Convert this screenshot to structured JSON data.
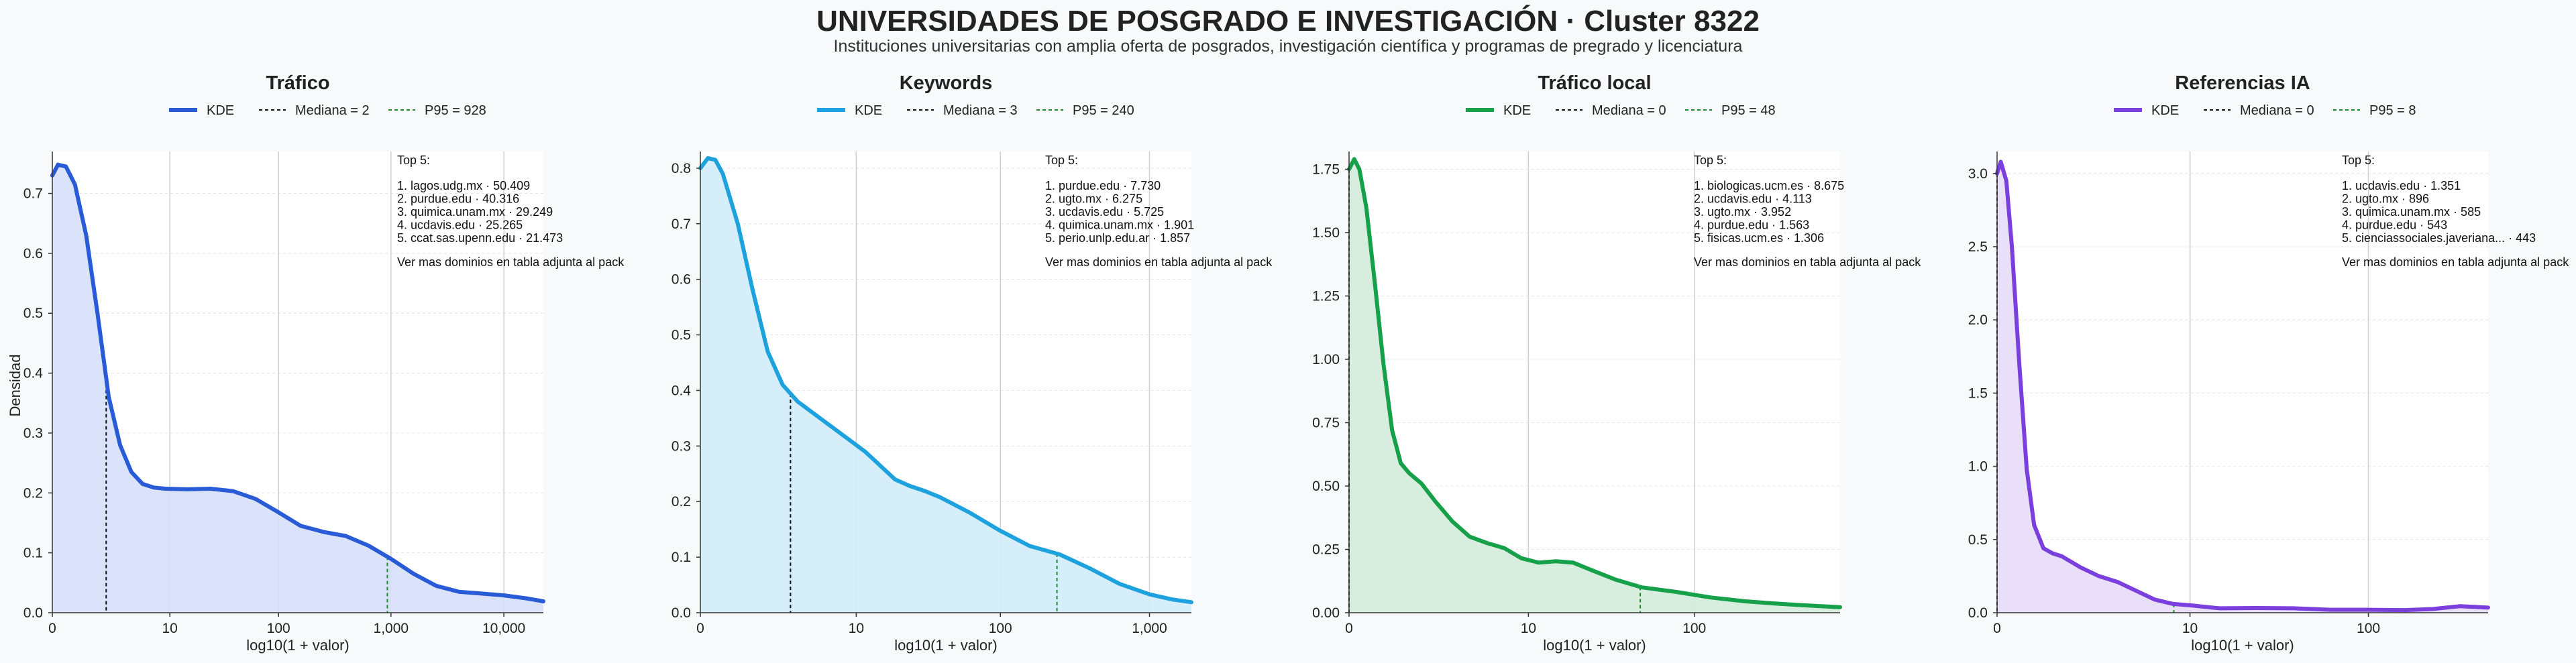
{
  "header": {
    "title": "UNIVERSIDADES DE POSGRADO E INVESTIGACIÓN · Cluster 8322",
    "subtitle": "Instituciones universitarias con amplia oferta de posgrados, investigación científica y programas de pregrado y licenciatura"
  },
  "chart_data": [
    {
      "type": "area",
      "title": "Tráfico",
      "color": "#2a5bd7",
      "fill": "#d6e0f8",
      "xlabel": "log10(1 + valor)",
      "ylabel": "Densidad",
      "xlim": [
        0,
        4.35
      ],
      "ylim": [
        0,
        0.77
      ],
      "xticks": [
        {
          "v": 0,
          "label": "0"
        },
        {
          "v": 1.041,
          "label": "10"
        },
        {
          "v": 2.004,
          "label": "100"
        },
        {
          "v": 3.0,
          "label": "1,000"
        },
        {
          "v": 4.0,
          "label": "10,000"
        }
      ],
      "yticks": [
        {
          "v": 0,
          "label": "0.0"
        },
        {
          "v": 0.1,
          "label": "0.1"
        },
        {
          "v": 0.2,
          "label": "0.2"
        },
        {
          "v": 0.3,
          "label": "0.3"
        },
        {
          "v": 0.4,
          "label": "0.4"
        },
        {
          "v": 0.5,
          "label": "0.5"
        },
        {
          "v": 0.6,
          "label": "0.6"
        },
        {
          "v": 0.7,
          "label": "0.7"
        }
      ],
      "legend": {
        "kde": "KDE",
        "median": "Mediana = 2",
        "p95": "P95 = 928"
      },
      "median_x": 0.477,
      "p95_x": 2.968,
      "kde": [
        [
          0,
          0.73
        ],
        [
          0.05,
          0.748
        ],
        [
          0.12,
          0.745
        ],
        [
          0.2,
          0.715
        ],
        [
          0.3,
          0.63
        ],
        [
          0.4,
          0.5
        ],
        [
          0.5,
          0.36
        ],
        [
          0.6,
          0.28
        ],
        [
          0.7,
          0.235
        ],
        [
          0.8,
          0.215
        ],
        [
          0.9,
          0.209
        ],
        [
          1.0,
          0.207
        ],
        [
          1.2,
          0.206
        ],
        [
          1.4,
          0.207
        ],
        [
          1.6,
          0.203
        ],
        [
          1.8,
          0.19
        ],
        [
          2.0,
          0.168
        ],
        [
          2.2,
          0.145
        ],
        [
          2.4,
          0.135
        ],
        [
          2.6,
          0.128
        ],
        [
          2.8,
          0.112
        ],
        [
          3.0,
          0.09
        ],
        [
          3.2,
          0.065
        ],
        [
          3.4,
          0.045
        ],
        [
          3.6,
          0.035
        ],
        [
          3.8,
          0.032
        ],
        [
          4.0,
          0.029
        ],
        [
          4.2,
          0.024
        ],
        [
          4.35,
          0.019
        ]
      ],
      "top5": {
        "heading": "Top 5:",
        "items": [
          "1. lagos.udg.mx · 50.409",
          "2. purdue.edu · 40.316",
          "3. quimica.unam.mx · 29.249",
          "4. ucdavis.edu · 25.265",
          "5. ccat.sas.upenn.edu · 21.473"
        ],
        "note": "Ver mas dominios en tabla adjunta al pack"
      }
    },
    {
      "type": "area",
      "title": "Keywords",
      "color": "#1ea2de",
      "fill": "#d2ecfa",
      "xlabel": "log10(1 + valor)",
      "ylabel": "",
      "xlim": [
        0,
        3.28
      ],
      "ylim": [
        0,
        0.83
      ],
      "xticks": [
        {
          "v": 0,
          "label": "0"
        },
        {
          "v": 1.041,
          "label": "10"
        },
        {
          "v": 2.004,
          "label": "100"
        },
        {
          "v": 3.0,
          "label": "1,000"
        }
      ],
      "yticks": [
        {
          "v": 0,
          "label": "0.0"
        },
        {
          "v": 0.1,
          "label": "0.1"
        },
        {
          "v": 0.2,
          "label": "0.2"
        },
        {
          "v": 0.3,
          "label": "0.3"
        },
        {
          "v": 0.4,
          "label": "0.4"
        },
        {
          "v": 0.5,
          "label": "0.5"
        },
        {
          "v": 0.6,
          "label": "0.6"
        },
        {
          "v": 0.7,
          "label": "0.7"
        },
        {
          "v": 0.8,
          "label": "0.8"
        }
      ],
      "legend": {
        "kde": "KDE",
        "median": "Mediana = 3",
        "p95": "P95 = 240"
      },
      "median_x": 0.602,
      "p95_x": 2.382,
      "kde": [
        [
          0,
          0.8
        ],
        [
          0.05,
          0.818
        ],
        [
          0.1,
          0.815
        ],
        [
          0.15,
          0.79
        ],
        [
          0.25,
          0.7
        ],
        [
          0.35,
          0.58
        ],
        [
          0.45,
          0.47
        ],
        [
          0.55,
          0.41
        ],
        [
          0.65,
          0.38
        ],
        [
          0.8,
          0.35
        ],
        [
          1.0,
          0.31
        ],
        [
          1.1,
          0.29
        ],
        [
          1.2,
          0.265
        ],
        [
          1.3,
          0.24
        ],
        [
          1.4,
          0.228
        ],
        [
          1.5,
          0.219
        ],
        [
          1.6,
          0.208
        ],
        [
          1.8,
          0.18
        ],
        [
          2.0,
          0.148
        ],
        [
          2.2,
          0.12
        ],
        [
          2.4,
          0.105
        ],
        [
          2.6,
          0.08
        ],
        [
          2.8,
          0.052
        ],
        [
          3.0,
          0.033
        ],
        [
          3.15,
          0.024
        ],
        [
          3.28,
          0.019
        ]
      ],
      "top5": {
        "heading": "Top 5:",
        "items": [
          "1. purdue.edu · 7.730",
          "2. ugto.mx · 6.275",
          "3. ucdavis.edu · 5.725",
          "4. quimica.unam.mx · 1.901",
          "5. perio.unlp.edu.ar · 1.857"
        ],
        "note": "Ver mas dominios en tabla adjunta al pack"
      }
    },
    {
      "type": "area",
      "title": "Tráfico local",
      "color": "#16a04a",
      "fill": "#d3ecdc",
      "xlabel": "log10(1 + valor)",
      "ylabel": "",
      "xlim": [
        0,
        2.85
      ],
      "ylim": [
        0,
        1.82
      ],
      "xticks": [
        {
          "v": 0,
          "label": "0"
        },
        {
          "v": 1.041,
          "label": "10"
        },
        {
          "v": 2.004,
          "label": "100"
        }
      ],
      "yticks": [
        {
          "v": 0,
          "label": "0.00"
        },
        {
          "v": 0.25,
          "label": "0.25"
        },
        {
          "v": 0.5,
          "label": "0.50"
        },
        {
          "v": 0.75,
          "label": "0.75"
        },
        {
          "v": 1.0,
          "label": "1.00"
        },
        {
          "v": 1.25,
          "label": "1.25"
        },
        {
          "v": 1.5,
          "label": "1.50"
        },
        {
          "v": 1.75,
          "label": "1.75"
        }
      ],
      "legend": {
        "kde": "KDE",
        "median": "Mediana = 0",
        "p95": "P95 = 48"
      },
      "median_x": 0,
      "p95_x": 1.69,
      "kde": [
        [
          0,
          1.75
        ],
        [
          0.03,
          1.79
        ],
        [
          0.06,
          1.75
        ],
        [
          0.1,
          1.6
        ],
        [
          0.15,
          1.3
        ],
        [
          0.2,
          0.98
        ],
        [
          0.25,
          0.72
        ],
        [
          0.3,
          0.59
        ],
        [
          0.35,
          0.55
        ],
        [
          0.42,
          0.51
        ],
        [
          0.5,
          0.44
        ],
        [
          0.6,
          0.36
        ],
        [
          0.7,
          0.3
        ],
        [
          0.8,
          0.275
        ],
        [
          0.9,
          0.255
        ],
        [
          1.0,
          0.215
        ],
        [
          1.1,
          0.198
        ],
        [
          1.2,
          0.203
        ],
        [
          1.3,
          0.198
        ],
        [
          1.4,
          0.17
        ],
        [
          1.55,
          0.13
        ],
        [
          1.7,
          0.1
        ],
        [
          1.9,
          0.082
        ],
        [
          2.1,
          0.06
        ],
        [
          2.3,
          0.045
        ],
        [
          2.5,
          0.035
        ],
        [
          2.7,
          0.027
        ],
        [
          2.85,
          0.022
        ]
      ],
      "top5": {
        "heading": "Top 5:",
        "items": [
          "1. biologicas.ucm.es · 8.675",
          "2. ucdavis.edu · 4.113",
          "3. ugto.mx · 3.952",
          "4. purdue.edu · 1.563",
          "5. fisicas.ucm.es · 1.306"
        ],
        "note": "Ver mas dominios en tabla adjunta al pack"
      }
    },
    {
      "type": "area",
      "title": "Referencias IA",
      "color": "#7a3fdc",
      "fill": "#e7dcf8",
      "xlabel": "log10(1 + valor)",
      "ylabel": "",
      "xlim": [
        0,
        2.65
      ],
      "ylim": [
        0,
        3.15
      ],
      "xticks": [
        {
          "v": 0,
          "label": "0"
        },
        {
          "v": 1.041,
          "label": "10"
        },
        {
          "v": 2.004,
          "label": "100"
        }
      ],
      "yticks": [
        {
          "v": 0,
          "label": "0.0"
        },
        {
          "v": 0.5,
          "label": "0.5"
        },
        {
          "v": 1.0,
          "label": "1.0"
        },
        {
          "v": 1.5,
          "label": "1.5"
        },
        {
          "v": 2.0,
          "label": "2.0"
        },
        {
          "v": 2.5,
          "label": "2.5"
        },
        {
          "v": 3.0,
          "label": "3.0"
        }
      ],
      "legend": {
        "kde": "KDE",
        "median": "Mediana = 0",
        "p95": "P95 = 8"
      },
      "median_x": 0,
      "p95_x": 0.954,
      "kde": [
        [
          0,
          3.0
        ],
        [
          0.02,
          3.08
        ],
        [
          0.05,
          2.95
        ],
        [
          0.08,
          2.5
        ],
        [
          0.12,
          1.7
        ],
        [
          0.16,
          0.98
        ],
        [
          0.2,
          0.6
        ],
        [
          0.25,
          0.44
        ],
        [
          0.3,
          0.405
        ],
        [
          0.35,
          0.385
        ],
        [
          0.45,
          0.31
        ],
        [
          0.55,
          0.25
        ],
        [
          0.65,
          0.21
        ],
        [
          0.75,
          0.15
        ],
        [
          0.85,
          0.09
        ],
        [
          0.95,
          0.06
        ],
        [
          1.05,
          0.05
        ],
        [
          1.2,
          0.03
        ],
        [
          1.4,
          0.032
        ],
        [
          1.6,
          0.03
        ],
        [
          1.8,
          0.02
        ],
        [
          2.0,
          0.02
        ],
        [
          2.2,
          0.018
        ],
        [
          2.35,
          0.025
        ],
        [
          2.5,
          0.045
        ],
        [
          2.65,
          0.035
        ]
      ],
      "top5": {
        "heading": "Top 5:",
        "items": [
          "1. ucdavis.edu · 1.351",
          "2. ugto.mx · 896",
          "3. quimica.unam.mx · 585",
          "4. purdue.edu · 543",
          "5. cienciassociales.javeriana... · 443"
        ],
        "note": "Ver mas dominios en tabla adjunta al pack"
      }
    }
  ]
}
